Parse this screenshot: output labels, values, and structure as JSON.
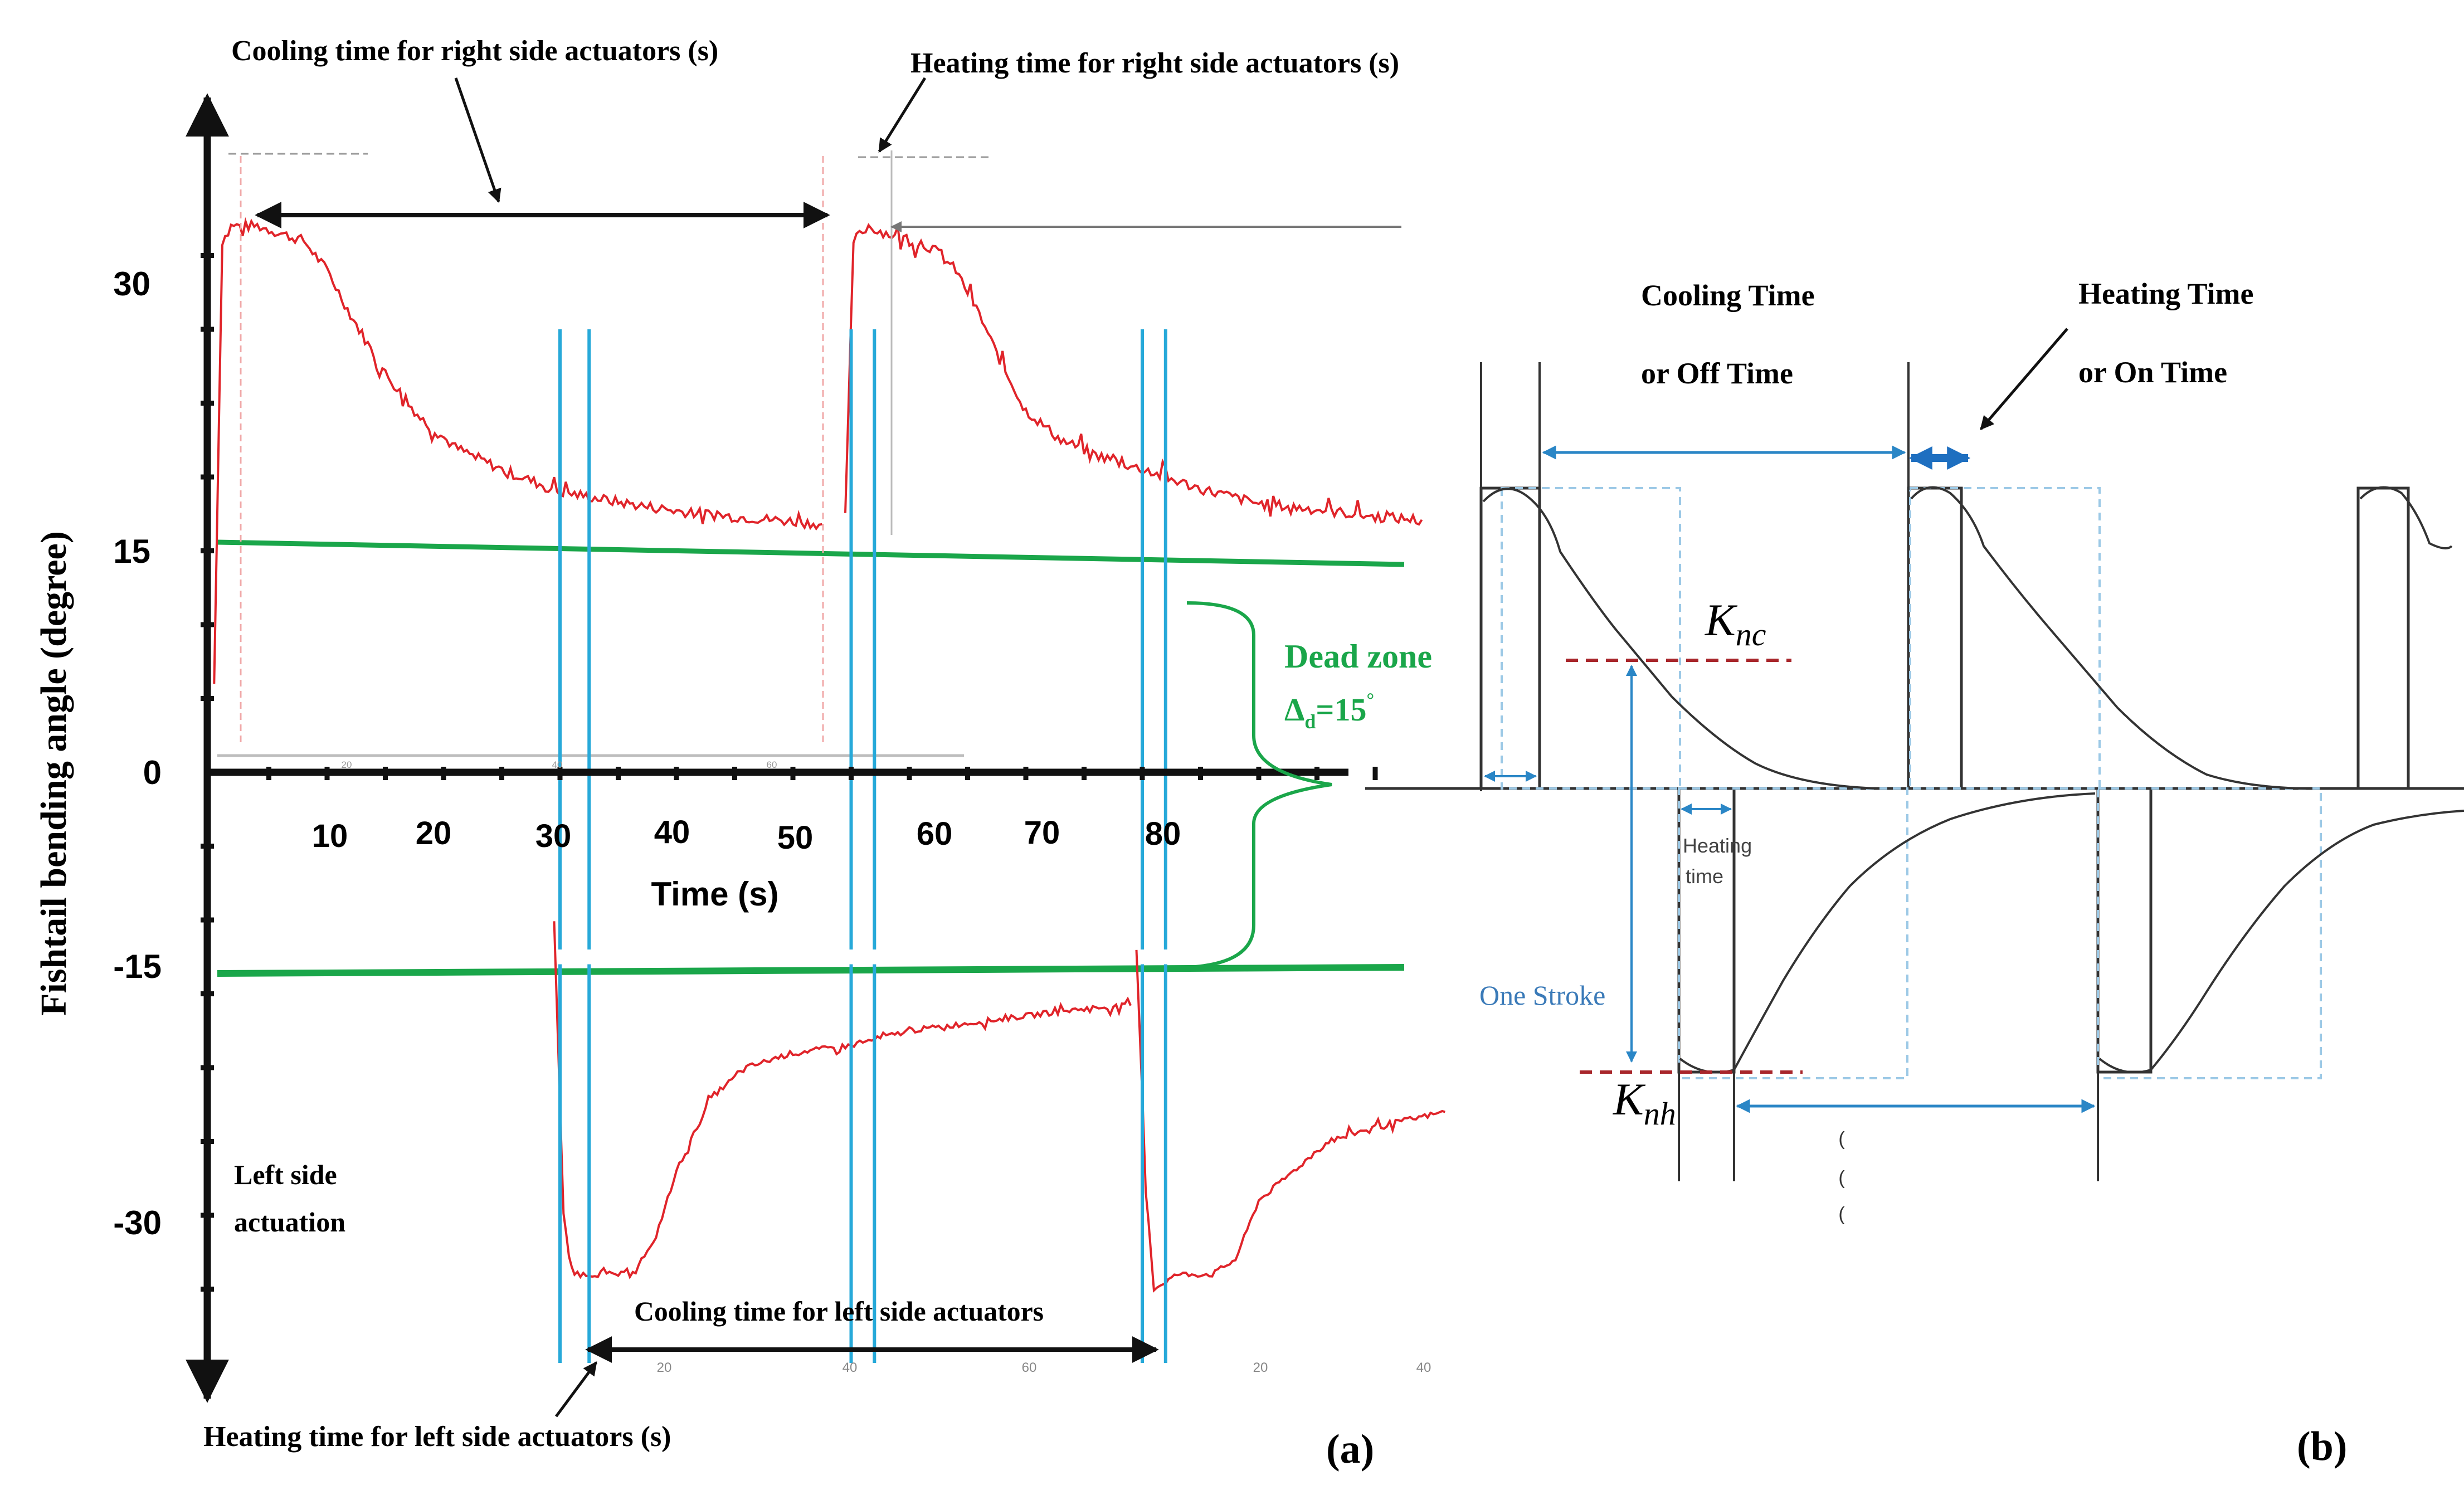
{
  "panel_a": {
    "panel_label": "(a)",
    "ylabel": "Fishtail bending angle (degree)",
    "xlabel": "Time (s)",
    "y_ticks": [
      "30",
      "15",
      "0",
      "-15",
      "-30"
    ],
    "x_ticks": [
      "10",
      "20",
      "30",
      "40",
      "50",
      "60",
      "70",
      "80"
    ],
    "small_ticks_top": [
      "20",
      "40",
      "60"
    ],
    "small_ticks_bottom_left": [
      "20",
      "40",
      "60"
    ],
    "small_ticks_bottom_right": [
      "20",
      "40"
    ],
    "annotations": {
      "cooling_right": "Cooling time for right side actuators (s)",
      "heating_right": "Heating time for right side actuators (s)",
      "cooling_left": "Cooling time for left side actuators",
      "heating_left": "Heating time for left side actuators (s)",
      "left_side_line1": "Left side",
      "left_side_line2": "actuation",
      "dead_zone": "Dead zone",
      "delta_symbol": "Δ",
      "delta_sub": "d",
      "delta_value": "=15",
      "delta_sup": "°"
    }
  },
  "panel_b": {
    "panel_label": "(b)",
    "cooling_line1": "Cooling Time",
    "cooling_line2": "or Off Time",
    "heating_line1": "Heating Time",
    "heating_line2": "or On Time",
    "k_main": "K",
    "knc_sub": "nc",
    "knh_sub": "nh",
    "heating_small_line1": "Heating",
    "heating_small_line2": "time",
    "one_stroke": "One Stroke"
  },
  "colors": {
    "signal": "#e0242a",
    "threshold": "#1aa64a",
    "marker": "#27a9d9",
    "axis": "#111111",
    "trace": "#333333",
    "dashed_box": "#9cc9e6",
    "k_level": "#a8262b",
    "arrow_blue": "#2a86c6",
    "stroke_text": "#3a7ab8"
  },
  "chart_data": [
    {
      "type": "line",
      "title": "",
      "xlabel": "Time (s)",
      "ylabel": "Fishtail bending angle (degree)",
      "xlim": [
        0,
        105
      ],
      "ylim": [
        -40,
        40
      ],
      "grid": false,
      "series": [
        {
          "name": "",
          "x": [
            0.3,
            1.0,
            2,
            4,
            6,
            8,
            10,
            12,
            15,
            18,
            21,
            25,
            30,
            35,
            40,
            45,
            50,
            52.5
          ],
          "y": [
            6,
            36,
            37,
            37,
            36.5,
            36,
            34,
            31,
            27,
            24,
            22,
            20.5,
            19,
            18.3,
            17.7,
            17.3,
            17,
            16.8
          ]
        },
        {
          "name": "",
          "x": [
            54.5,
            55.2,
            56.5,
            58,
            60,
            62,
            64,
            66,
            68,
            70,
            73,
            76,
            80,
            85,
            90,
            95,
            100,
            104
          ],
          "y": [
            17,
            36,
            37,
            36.5,
            36,
            35.5,
            34,
            31,
            27.5,
            24.5,
            22.5,
            21.5,
            20.5,
            19.2,
            18.2,
            17.8,
            17.3,
            17.1
          ]
        },
        {
          "name": "",
          "x": [
            29.5,
            30.3,
            31,
            33,
            36,
            38,
            40,
            43,
            46,
            50,
            55,
            60,
            65,
            70,
            75,
            79
          ],
          "y": [
            -10,
            -30,
            -34,
            -34,
            -34,
            -32,
            -27,
            -22,
            -20,
            -19,
            -18.5,
            -17.5,
            -17,
            -16.5,
            -16,
            -15.8
          ]
        },
        {
          "name": "",
          "x": [
            79.5,
            80.3,
            81,
            83,
            86,
            88,
            90,
            93,
            96,
            100,
            103,
            106
          ],
          "y": [
            -12,
            -28,
            -35,
            -34,
            -34,
            -33,
            -29,
            -27,
            -25,
            -24,
            -23.5,
            -23
          ]
        }
      ],
      "threshold_lines": {
        "upper": {
          "x": [
            0,
            106
          ],
          "y": [
            15,
            14
          ]
        },
        "lower": {
          "x": [
            0,
            106
          ],
          "y": [
            -15,
            -14.8
          ]
        }
      },
      "markers_x": [
        30,
        32.5,
        55,
        57,
        80,
        82
      ],
      "dead_zone": 15,
      "legend": "none"
    },
    {
      "type": "line",
      "title": "",
      "xlabel": "",
      "ylabel": "",
      "xlim": [
        0,
        100
      ],
      "ylim": [
        -1,
        1
      ],
      "grid": false,
      "series": [
        {
          "name": "",
          "x": [
            0,
            6,
            6,
            12,
            12,
            44,
            44,
            50,
            50,
            80,
            80,
            86,
            86,
            100
          ],
          "y": [
            0,
            0,
            1,
            1,
            0,
            0,
            1,
            1,
            0,
            0,
            1,
            1,
            0,
            0
          ]
        },
        {
          "name": "",
          "x": [
            0,
            33,
            33,
            39,
            39,
            77,
            77,
            83,
            83,
            100
          ],
          "y": [
            0,
            0,
            -1,
            -1,
            0,
            0,
            -1,
            -1,
            0,
            0
          ]
        }
      ],
      "legend": "none"
    }
  ]
}
